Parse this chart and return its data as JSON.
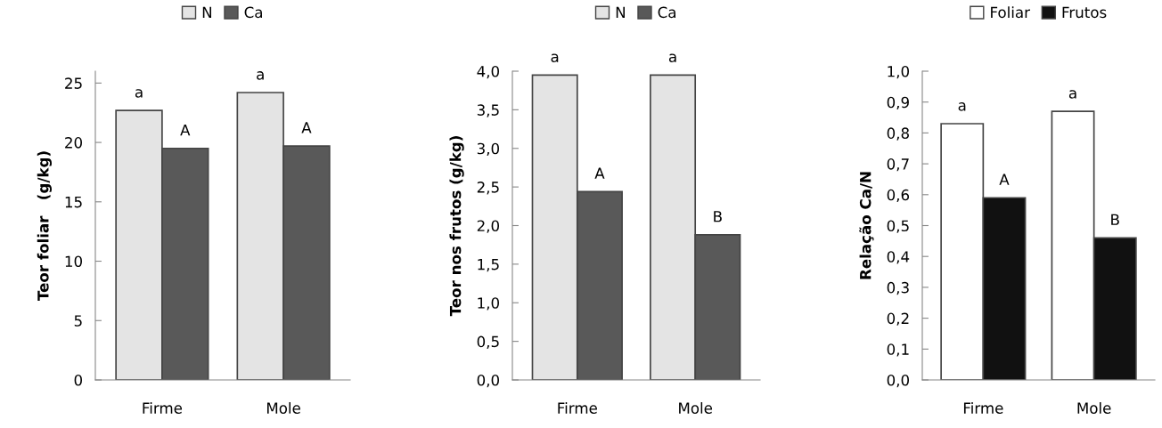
{
  "chart_data": [
    {
      "type": "bar",
      "ylabel": "Teor foliar   (g/kg)",
      "categories": [
        "Firme",
        "Mole"
      ],
      "series": [
        {
          "name": "N",
          "color": "#e4e4e4",
          "values": [
            22.7,
            24.2
          ],
          "value_labels": [
            "a",
            "a"
          ]
        },
        {
          "name": "Ca",
          "color": "#595959",
          "values": [
            19.5,
            19.7
          ],
          "value_labels": [
            "A",
            "A"
          ]
        }
      ],
      "ylim": [
        0,
        26
      ],
      "yticks": [
        0,
        5,
        10,
        15,
        20,
        25
      ],
      "grid": false,
      "legend": "top"
    },
    {
      "type": "bar",
      "ylabel": "Teor nos frutos (g/kg)",
      "categories": [
        "Firme",
        "Mole"
      ],
      "series": [
        {
          "name": "N",
          "color": "#e4e4e4",
          "values": [
            3.95,
            3.95
          ],
          "value_labels": [
            "a",
            "a"
          ]
        },
        {
          "name": "Ca",
          "color": "#595959",
          "values": [
            2.44,
            1.88
          ],
          "value_labels": [
            "A",
            "B"
          ]
        }
      ],
      "ylim": [
        0,
        4.0
      ],
      "yticks": [
        {
          "value": 0,
          "label": "0,0"
        },
        {
          "value": 0.5,
          "label": "0,5"
        },
        {
          "value": 1.0,
          "label": "1,0"
        },
        {
          "value": 1.5,
          "label": "1,5"
        },
        {
          "value": 2.0,
          "label": "2,0"
        },
        {
          "value": 2.5,
          "label": "2,5"
        },
        {
          "value": 3.0,
          "label": "3,0"
        },
        {
          "value": 3.5,
          "label": "3,5"
        },
        {
          "value": 4.0,
          "label": "4,0"
        }
      ],
      "grid": false,
      "legend": "top"
    },
    {
      "type": "bar",
      "ylabel": "Relação Ca/N",
      "categories": [
        "Firme",
        "Mole"
      ],
      "series": [
        {
          "name": "Foliar",
          "color": "#ffffff",
          "values": [
            0.83,
            0.87
          ],
          "value_labels": [
            "a",
            "a"
          ]
        },
        {
          "name": "Frutos",
          "color": "#111111",
          "values": [
            0.59,
            0.46
          ],
          "value_labels": [
            "A",
            "B"
          ]
        }
      ],
      "ylim": [
        0,
        1.0
      ],
      "yticks": [
        {
          "value": 0,
          "label": "0,0"
        },
        {
          "value": 0.1,
          "label": "0,1"
        },
        {
          "value": 0.2,
          "label": "0,2"
        },
        {
          "value": 0.3,
          "label": "0,3"
        },
        {
          "value": 0.4,
          "label": "0,4"
        },
        {
          "value": 0.5,
          "label": "0,5"
        },
        {
          "value": 0.6,
          "label": "0,6"
        },
        {
          "value": 0.7,
          "label": "0,7"
        },
        {
          "value": 0.8,
          "label": "0,8"
        },
        {
          "value": 0.9,
          "label": "0,9"
        },
        {
          "value": 1.0,
          "label": "1,0"
        }
      ],
      "grid": false,
      "legend": "top"
    }
  ]
}
